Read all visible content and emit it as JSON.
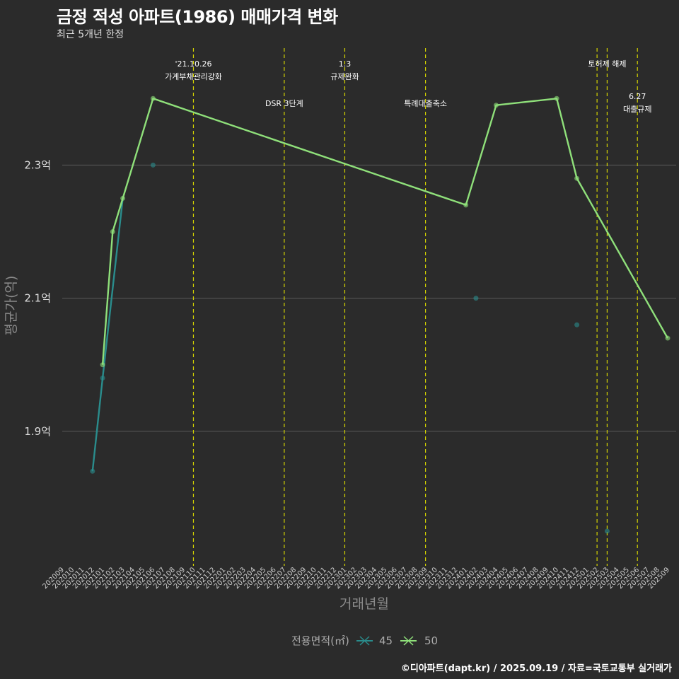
{
  "title": "금정 적성 아파트(1986) 매매가격 변화",
  "subtitle": "최근 5개년 한정",
  "caption": "©디아파트(dapt.kr) / 2025.09.19 / 자료=국토교통부 실거래가",
  "colors": {
    "background": "#2b2b2b",
    "grid": "#5a5a5a",
    "event_line": "#d4d400",
    "series_45": "#2a8c8c",
    "series_50": "#8fe07a"
  },
  "chart_data": {
    "type": "line",
    "xlabel": "거래년월",
    "ylabel": "평균가(억)",
    "ylim": [
      1.7,
      2.48
    ],
    "yticks": [
      1.9,
      2.1,
      2.3
    ],
    "ytick_labels": [
      "1.9억",
      "2.1억",
      "2.3억"
    ],
    "x_categories": [
      "202009",
      "202010",
      "202011",
      "202012",
      "202101",
      "202102",
      "202103",
      "202104",
      "202105",
      "202106",
      "202107",
      "202108",
      "202109",
      "202110",
      "202111",
      "202112",
      "202201",
      "202202",
      "202203",
      "202204",
      "202205",
      "202206",
      "202207",
      "202208",
      "202209",
      "202210",
      "202211",
      "202212",
      "202301",
      "202302",
      "202303",
      "202304",
      "202305",
      "202306",
      "202307",
      "202308",
      "202309",
      "202310",
      "202311",
      "202312",
      "202401",
      "202402",
      "202403",
      "202404",
      "202405",
      "202406",
      "202407",
      "202408",
      "202409",
      "202410",
      "202411",
      "202412",
      "202501",
      "202502",
      "202503",
      "202504",
      "202505",
      "202506",
      "202507",
      "202508",
      "202509"
    ],
    "series": [
      {
        "name": "45",
        "line": [
          {
            "x": "202012",
            "y": 1.84
          },
          {
            "x": "202101",
            "y": 1.98
          },
          {
            "x": "202103",
            "y": 2.25
          }
        ],
        "points": [
          {
            "x": "202012",
            "y": 1.84
          },
          {
            "x": "202101",
            "y": 1.98
          },
          {
            "x": "202106",
            "y": 2.3
          },
          {
            "x": "202402",
            "y": 2.1
          },
          {
            "x": "202412",
            "y": 2.06
          },
          {
            "x": "202503",
            "y": 1.75
          }
        ]
      },
      {
        "name": "50",
        "line": [
          {
            "x": "202101",
            "y": 2.0
          },
          {
            "x": "202102",
            "y": 2.2
          },
          {
            "x": "202103",
            "y": 2.25
          },
          {
            "x": "202106",
            "y": 2.4
          },
          {
            "x": "202401",
            "y": 2.24
          },
          {
            "x": "202404",
            "y": 2.39
          },
          {
            "x": "202410",
            "y": 2.4
          },
          {
            "x": "202412",
            "y": 2.28
          },
          {
            "x": "202509",
            "y": 2.04
          }
        ],
        "points": [
          {
            "x": "202101",
            "y": 2.0
          },
          {
            "x": "202102",
            "y": 2.2
          },
          {
            "x": "202103",
            "y": 2.25
          },
          {
            "x": "202106",
            "y": 2.4
          },
          {
            "x": "202401",
            "y": 2.24
          },
          {
            "x": "202404",
            "y": 2.39
          },
          {
            "x": "202410",
            "y": 2.4
          },
          {
            "x": "202412",
            "y": 2.28
          },
          {
            "x": "202509",
            "y": 2.04
          }
        ]
      }
    ],
    "events": [
      {
        "x": "202110",
        "lines": [
          "'21.10.26",
          "가계부채관리강화"
        ],
        "tier": 0
      },
      {
        "x": "202207",
        "lines": [
          "DSR 3단계"
        ],
        "tier": 1
      },
      {
        "x": "202301",
        "lines": [
          "1.3",
          "규제완화"
        ],
        "tier": 0
      },
      {
        "x": "202309",
        "lines": [
          "특례대출축소"
        ],
        "tier": 1
      },
      {
        "x": "202502",
        "lines": [],
        "tier": 0
      },
      {
        "x": "202503",
        "lines": [
          "토허제 해제"
        ],
        "tier": 0
      },
      {
        "x": "202506",
        "lines": [
          "6.27",
          "대출규제"
        ],
        "tier": 2
      }
    ],
    "legend": {
      "title": "전용면적(㎡)",
      "position": "bottom"
    },
    "grid": true
  }
}
